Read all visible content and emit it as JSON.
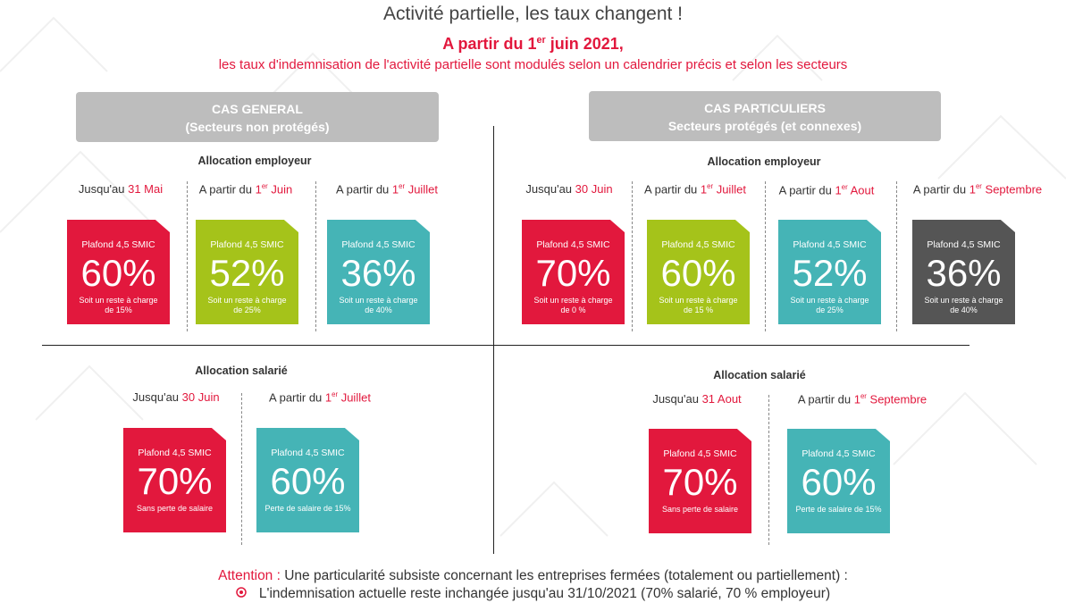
{
  "title": "Activité partielle,  les taux changent !",
  "subtitle": {
    "pre": "A partir du 1",
    "sup": "er",
    "post": " juin 2021,"
  },
  "subline": "les taux d'indemnisation de l'activité partielle sont modulés selon un calendrier précis et selon les secteurs",
  "colors": {
    "red": "#e2183d",
    "green": "#a5c31a",
    "teal": "#45b4b6",
    "dark": "#555555",
    "banner": "#bdbdbd"
  },
  "general": {
    "banner": [
      "CAS GENERAL",
      "(Secteurs non protégés)"
    ],
    "employeur": {
      "heading": "Allocation employeur",
      "periods": [
        {
          "pre": "Jusqu'au ",
          "sup": "",
          "red": "31 Mai"
        },
        {
          "pre": "A partir du ",
          "sup": "er",
          "red": "Juin",
          "num": "1"
        },
        {
          "pre": "A partir du ",
          "sup": "er",
          "red": "Juillet",
          "num": "1"
        }
      ],
      "cards": [
        {
          "plafond": "Plafond 4,5 SMIC",
          "pct": "60%",
          "note": "Soit un reste à charge de 15%"
        },
        {
          "plafond": "Plafond 4,5 SMIC",
          "pct": "52%",
          "note": "Soit un reste à charge de 25%"
        },
        {
          "plafond": "Plafond 4,5 SMIC",
          "pct": "36%",
          "note": "Soit un reste à charge de 40%"
        }
      ]
    },
    "salarie": {
      "heading": "Allocation salarié",
      "periods": [
        {
          "pre": "Jusqu'au ",
          "sup": "",
          "red": "30 Juin"
        },
        {
          "pre": "A partir du ",
          "sup": "er",
          "red": "Juillet",
          "num": "1"
        }
      ],
      "cards": [
        {
          "plafond": "Plafond 4,5 SMIC",
          "pct": "70%",
          "note": "Sans perte de salaire"
        },
        {
          "plafond": "Plafond 4,5 SMIC",
          "pct": "60%",
          "note": "Perte de salaire de 15%"
        }
      ]
    }
  },
  "particuliers": {
    "banner": [
      "CAS PARTICULIERS",
      "Secteurs protégés (et connexes)"
    ],
    "employeur": {
      "heading": "Allocation employeur",
      "periods": [
        {
          "pre": "Jusqu'au ",
          "sup": "",
          "red": "30 Juin"
        },
        {
          "pre": "A partir du ",
          "sup": "er",
          "red": "Juillet",
          "num": "1"
        },
        {
          "pre": "A partir du ",
          "sup": "er",
          "red": "Aout",
          "num": "1"
        },
        {
          "pre": "A partir du ",
          "sup": "er",
          "red": "Septembre",
          "num": "1"
        }
      ],
      "cards": [
        {
          "plafond": "Plafond 4,5 SMIC",
          "pct": "70%",
          "note": "Soit un reste à charge de 0 %"
        },
        {
          "plafond": "Plafond 4,5 SMIC",
          "pct": "60%",
          "note": "Soit un reste à charge de 15 %"
        },
        {
          "plafond": "Plafond 4,5 SMIC",
          "pct": "52%",
          "note": "Soit un reste à charge de 25%"
        },
        {
          "plafond": "Plafond 4,5 SMIC",
          "pct": "36%",
          "note": "Soit un reste à charge de  40%"
        }
      ]
    },
    "salarie": {
      "heading": "Allocation salarié",
      "periods": [
        {
          "pre": "Jusqu'au ",
          "sup": "",
          "red": "31 Aout"
        },
        {
          "pre": "A partir du ",
          "sup": "er",
          "red": "Septembre",
          "num": "1"
        }
      ],
      "cards": [
        {
          "plafond": "Plafond 4,5 SMIC",
          "pct": "70%",
          "note": "Sans perte de salaire"
        },
        {
          "plafond": "Plafond 4,5 SMIC",
          "pct": "60%",
          "note": "Perte de salaire de 15%"
        }
      ]
    }
  },
  "attention": {
    "label": "Attention :",
    "text": " Une particularité subsiste concernant les entreprises fermées (totalement ou partiellement) :"
  },
  "bullet": {
    "icon": "target-icon",
    "text": "L'indemnisation actuelle reste inchangée jusqu'au 31/10/2021 (70% salarié, 70 % employeur)"
  }
}
